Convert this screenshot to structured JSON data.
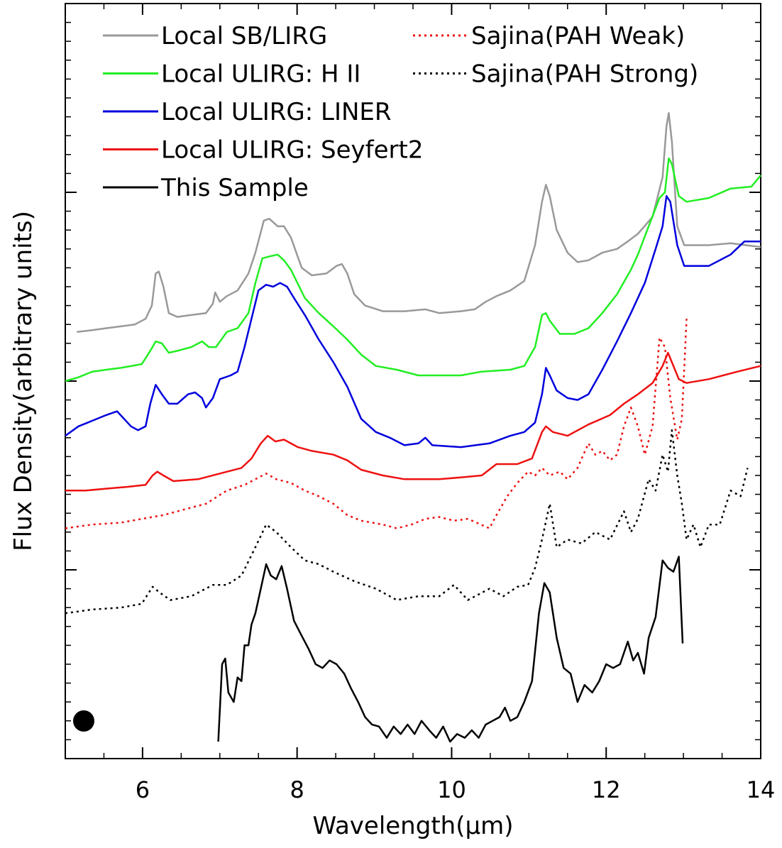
{
  "chart_data": {
    "type": "line",
    "xlabel": "Wavelength(μm)",
    "ylabel": "Flux Density(arbitrary units)",
    "xlim": [
      5,
      14
    ],
    "xticks": [
      6,
      8,
      10,
      12,
      14
    ],
    "ylim": [
      0,
      4
    ],
    "yticks": [
      0,
      1,
      2,
      3,
      4
    ],
    "legend": "upper left",
    "series": [
      {
        "name": "Local SB/LIRG",
        "color": "#999999",
        "linestyle": "solid",
        "x": [
          5.15,
          5.35,
          5.53,
          5.72,
          5.9,
          6.04,
          6.12,
          6.17,
          6.21,
          6.27,
          6.34,
          6.45,
          6.63,
          6.82,
          6.91,
          6.94,
          7.0,
          7.09,
          7.23,
          7.37,
          7.46,
          7.57,
          7.64,
          7.75,
          7.83,
          7.92,
          8.06,
          8.19,
          8.38,
          8.51,
          8.58,
          8.65,
          8.74,
          8.88,
          9.11,
          9.39,
          9.66,
          9.84,
          10.12,
          10.3,
          10.44,
          10.58,
          10.76,
          10.94,
          11.08,
          11.17,
          11.22,
          11.27,
          11.36,
          11.5,
          11.63,
          11.77,
          11.95,
          12.14,
          12.28,
          12.41,
          12.6,
          12.73,
          12.78,
          12.81,
          12.85,
          12.92,
          13.01,
          13.33,
          13.61,
          14.0
        ],
        "values": [
          2.26,
          2.27,
          2.28,
          2.29,
          2.3,
          2.33,
          2.4,
          2.57,
          2.58,
          2.5,
          2.36,
          2.34,
          2.35,
          2.36,
          2.41,
          2.47,
          2.42,
          2.45,
          2.48,
          2.57,
          2.68,
          2.85,
          2.86,
          2.82,
          2.82,
          2.76,
          2.6,
          2.56,
          2.57,
          2.61,
          2.62,
          2.57,
          2.46,
          2.4,
          2.37,
          2.37,
          2.38,
          2.36,
          2.37,
          2.38,
          2.42,
          2.45,
          2.48,
          2.53,
          2.72,
          2.95,
          3.04,
          2.98,
          2.8,
          2.68,
          2.63,
          2.64,
          2.68,
          2.7,
          2.74,
          2.78,
          2.87,
          3.08,
          3.35,
          3.42,
          3.27,
          2.82,
          2.72,
          2.72,
          2.73,
          2.71
        ]
      },
      {
        "name": "Local ULIRG: H II",
        "color": "#22ee22",
        "linestyle": "solid",
        "x": [
          5.0,
          5.17,
          5.35,
          5.53,
          5.72,
          5.99,
          6.1,
          6.17,
          6.25,
          6.34,
          6.45,
          6.63,
          6.77,
          6.86,
          6.95,
          7.09,
          7.23,
          7.37,
          7.46,
          7.55,
          7.64,
          7.75,
          7.83,
          7.92,
          8.1,
          8.28,
          8.47,
          8.65,
          8.83,
          9.02,
          9.29,
          9.57,
          9.84,
          10.12,
          10.39,
          10.76,
          10.94,
          11.08,
          11.17,
          11.22,
          11.27,
          11.4,
          11.59,
          11.77,
          11.95,
          12.14,
          12.32,
          12.41,
          12.55,
          12.69,
          12.76,
          12.81,
          12.85,
          12.94,
          13.04,
          13.33,
          13.61,
          13.88,
          14.0
        ],
        "values": [
          2.0,
          2.02,
          2.05,
          2.06,
          2.07,
          2.09,
          2.16,
          2.21,
          2.2,
          2.15,
          2.16,
          2.18,
          2.21,
          2.18,
          2.18,
          2.26,
          2.28,
          2.36,
          2.52,
          2.65,
          2.66,
          2.67,
          2.64,
          2.59,
          2.44,
          2.36,
          2.29,
          2.22,
          2.14,
          2.08,
          2.06,
          2.03,
          2.03,
          2.03,
          2.05,
          2.06,
          2.08,
          2.18,
          2.35,
          2.36,
          2.32,
          2.25,
          2.25,
          2.28,
          2.36,
          2.46,
          2.59,
          2.67,
          2.82,
          2.97,
          3.0,
          3.18,
          3.15,
          2.98,
          2.95,
          2.97,
          3.02,
          3.03,
          3.09
        ]
      },
      {
        "name": "Local ULIRG: LINER",
        "color": "#0000dd",
        "linestyle": "solid",
        "x": [
          5.0,
          5.17,
          5.35,
          5.53,
          5.67,
          5.76,
          5.85,
          5.94,
          6.04,
          6.1,
          6.17,
          6.25,
          6.34,
          6.45,
          6.59,
          6.68,
          6.77,
          6.82,
          6.91,
          7.0,
          7.14,
          7.23,
          7.32,
          7.41,
          7.5,
          7.6,
          7.69,
          7.78,
          7.87,
          7.96,
          8.1,
          8.28,
          8.47,
          8.65,
          8.83,
          9.02,
          9.2,
          9.39,
          9.57,
          9.66,
          9.75,
          10.12,
          10.49,
          10.76,
          10.94,
          11.08,
          11.17,
          11.22,
          11.27,
          11.36,
          11.5,
          11.63,
          11.77,
          11.95,
          12.14,
          12.32,
          12.5,
          12.64,
          12.73,
          12.78,
          12.83,
          12.92,
          13.01,
          13.33,
          13.61,
          13.79,
          14.0
        ],
        "values": [
          1.71,
          1.76,
          1.79,
          1.82,
          1.84,
          1.8,
          1.76,
          1.74,
          1.76,
          1.88,
          1.98,
          1.93,
          1.88,
          1.88,
          1.93,
          1.94,
          1.91,
          1.86,
          1.91,
          2.01,
          2.03,
          2.05,
          2.18,
          2.33,
          2.48,
          2.51,
          2.5,
          2.52,
          2.5,
          2.44,
          2.35,
          2.22,
          2.1,
          1.97,
          1.8,
          1.73,
          1.7,
          1.66,
          1.67,
          1.7,
          1.66,
          1.65,
          1.67,
          1.71,
          1.73,
          1.78,
          1.93,
          2.07,
          2.03,
          1.95,
          1.91,
          1.9,
          1.93,
          2.06,
          2.21,
          2.36,
          2.52,
          2.7,
          2.82,
          2.98,
          2.95,
          2.72,
          2.61,
          2.61,
          2.67,
          2.74,
          2.74
        ]
      },
      {
        "name": "Local ULIRG: Seyfert2",
        "color": "#ee1111",
        "linestyle": "solid",
        "x": [
          5.0,
          5.26,
          5.53,
          5.81,
          6.04,
          6.13,
          6.19,
          6.27,
          6.4,
          6.72,
          7.0,
          7.28,
          7.41,
          7.53,
          7.62,
          7.72,
          7.83,
          8.01,
          8.19,
          8.47,
          8.65,
          8.83,
          9.11,
          9.39,
          9.84,
          10.12,
          10.39,
          10.58,
          10.85,
          11.04,
          11.17,
          11.22,
          11.31,
          11.5,
          11.77,
          12.05,
          12.23,
          12.41,
          12.6,
          12.73,
          12.8,
          12.85,
          12.94,
          13.04,
          13.33,
          13.7,
          14.0
        ],
        "values": [
          1.42,
          1.42,
          1.43,
          1.44,
          1.45,
          1.5,
          1.52,
          1.5,
          1.47,
          1.48,
          1.51,
          1.54,
          1.59,
          1.67,
          1.71,
          1.68,
          1.69,
          1.65,
          1.63,
          1.61,
          1.58,
          1.53,
          1.5,
          1.48,
          1.48,
          1.49,
          1.5,
          1.56,
          1.56,
          1.59,
          1.73,
          1.76,
          1.73,
          1.71,
          1.77,
          1.82,
          1.88,
          1.93,
          1.99,
          2.08,
          2.15,
          2.1,
          2.01,
          1.99,
          2.01,
          2.05,
          2.08
        ]
      },
      {
        "name": "This Sample",
        "color": "#000000",
        "linestyle": "solid",
        "x": [
          6.98,
          7.03,
          7.07,
          7.11,
          7.18,
          7.23,
          7.28,
          7.32,
          7.37,
          7.41,
          7.46,
          7.53,
          7.6,
          7.66,
          7.73,
          7.8,
          7.87,
          7.96,
          8.06,
          8.15,
          8.24,
          8.33,
          8.42,
          8.51,
          8.61,
          8.7,
          8.79,
          8.88,
          8.97,
          9.06,
          9.16,
          9.25,
          9.34,
          9.43,
          9.52,
          9.61,
          9.71,
          9.8,
          9.89,
          9.98,
          10.07,
          10.17,
          10.26,
          10.35,
          10.44,
          10.53,
          10.62,
          10.69,
          10.76,
          10.85,
          10.94,
          11.04,
          11.13,
          11.2,
          11.27,
          11.36,
          11.45,
          11.54,
          11.63,
          11.72,
          11.82,
          11.91,
          12.0,
          12.09,
          12.18,
          12.28,
          12.35,
          12.41,
          12.49,
          12.55,
          12.64,
          12.73,
          12.8,
          12.87,
          12.94,
          12.99
        ],
        "values": [
          0.09,
          0.5,
          0.53,
          0.35,
          0.3,
          0.43,
          0.41,
          0.6,
          0.6,
          0.71,
          0.77,
          0.9,
          1.03,
          0.97,
          0.95,
          1.02,
          0.9,
          0.73,
          0.65,
          0.58,
          0.5,
          0.48,
          0.52,
          0.5,
          0.45,
          0.37,
          0.3,
          0.22,
          0.18,
          0.17,
          0.11,
          0.17,
          0.13,
          0.18,
          0.13,
          0.2,
          0.15,
          0.11,
          0.17,
          0.09,
          0.13,
          0.11,
          0.15,
          0.11,
          0.18,
          0.2,
          0.22,
          0.27,
          0.2,
          0.22,
          0.3,
          0.41,
          0.77,
          0.93,
          0.88,
          0.64,
          0.48,
          0.45,
          0.3,
          0.39,
          0.35,
          0.41,
          0.5,
          0.48,
          0.5,
          0.62,
          0.52,
          0.56,
          0.45,
          0.64,
          0.75,
          1.05,
          1.01,
          0.99,
          1.07,
          0.61
        ]
      },
      {
        "name": "Sajina(PAH Weak)",
        "color": "#ee1111",
        "linestyle": "dotted",
        "x": [
          5.0,
          5.35,
          5.72,
          5.99,
          6.27,
          6.54,
          6.82,
          7.09,
          7.32,
          7.46,
          7.6,
          7.73,
          7.92,
          8.1,
          8.28,
          8.47,
          8.65,
          8.83,
          9.11,
          9.29,
          9.48,
          9.66,
          9.84,
          10.03,
          10.21,
          10.49,
          10.58,
          10.72,
          10.85,
          10.99,
          11.08,
          11.17,
          11.27,
          11.4,
          11.5,
          11.63,
          11.77,
          11.86,
          11.95,
          12.05,
          12.14,
          12.23,
          12.32,
          12.41,
          12.5,
          12.6,
          12.69,
          12.76,
          12.83,
          12.92,
          12.98,
          13.04
        ],
        "values": [
          1.22,
          1.24,
          1.25,
          1.27,
          1.29,
          1.32,
          1.35,
          1.42,
          1.45,
          1.48,
          1.51,
          1.48,
          1.46,
          1.42,
          1.39,
          1.35,
          1.29,
          1.26,
          1.24,
          1.22,
          1.24,
          1.27,
          1.28,
          1.26,
          1.27,
          1.22,
          1.29,
          1.39,
          1.46,
          1.52,
          1.5,
          1.54,
          1.5,
          1.52,
          1.48,
          1.54,
          1.67,
          1.61,
          1.63,
          1.58,
          1.61,
          1.76,
          1.86,
          1.76,
          1.61,
          1.76,
          2.23,
          2.18,
          1.91,
          1.69,
          1.8,
          2.33
        ]
      },
      {
        "name": "Sajina(PAH Strong)",
        "color": "#000000",
        "linestyle": "dotted",
        "x": [
          5.0,
          5.35,
          5.72,
          5.99,
          6.13,
          6.22,
          6.36,
          6.63,
          6.91,
          7.09,
          7.28,
          7.46,
          7.6,
          7.73,
          7.92,
          8.1,
          8.28,
          8.47,
          8.74,
          9.02,
          9.29,
          9.57,
          9.84,
          10.03,
          10.21,
          10.49,
          10.67,
          10.85,
          10.99,
          11.08,
          11.17,
          11.27,
          11.36,
          11.5,
          11.68,
          11.86,
          12.05,
          12.23,
          12.32,
          12.41,
          12.55,
          12.64,
          12.73,
          12.8,
          12.85,
          12.92,
          12.98,
          13.04,
          13.13,
          13.22,
          13.33,
          13.47,
          13.61,
          13.74,
          13.83
        ],
        "values": [
          0.77,
          0.79,
          0.8,
          0.82,
          0.91,
          0.88,
          0.84,
          0.86,
          0.92,
          0.92,
          0.97,
          1.12,
          1.24,
          1.2,
          1.12,
          1.05,
          1.03,
          0.99,
          0.94,
          0.9,
          0.84,
          0.86,
          0.86,
          0.92,
          0.84,
          0.9,
          0.86,
          0.91,
          0.92,
          1.01,
          1.16,
          1.35,
          1.12,
          1.16,
          1.14,
          1.2,
          1.16,
          1.31,
          1.2,
          1.27,
          1.48,
          1.42,
          1.61,
          1.52,
          1.74,
          1.5,
          1.35,
          1.16,
          1.24,
          1.12,
          1.24,
          1.24,
          1.42,
          1.39,
          1.54
        ]
      }
    ]
  }
}
